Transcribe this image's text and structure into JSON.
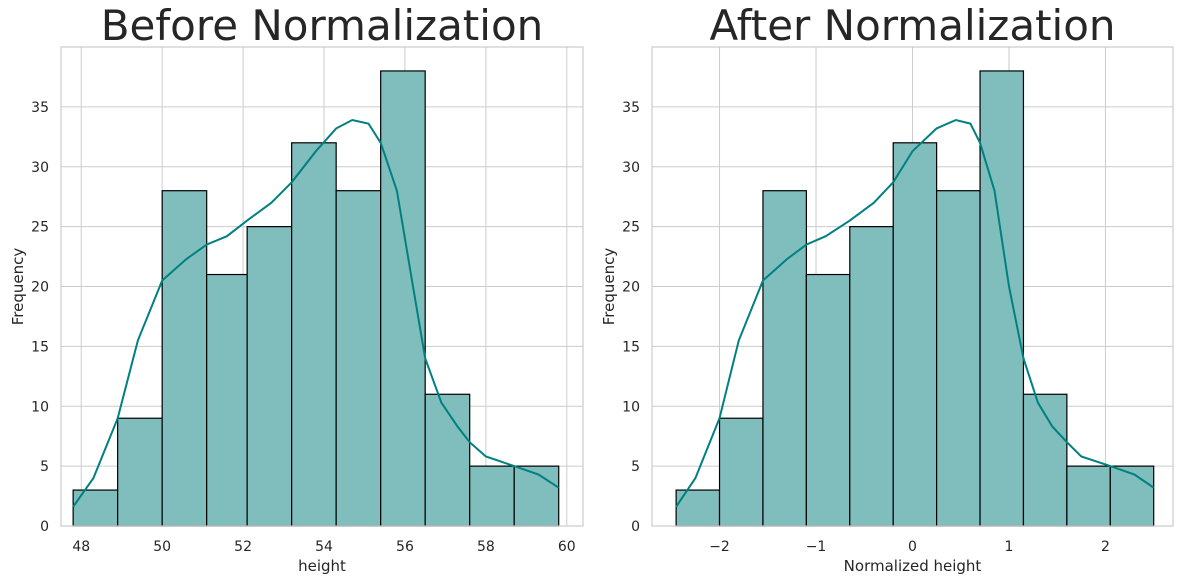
{
  "chart_data": [
    {
      "type": "bar",
      "subtype": "histogram",
      "title": "Before Normalization",
      "xlabel": "height",
      "ylabel": "Frequency",
      "xlim": [
        47.5,
        60.4
      ],
      "ylim": [
        0,
        40
      ],
      "xticks": [
        48,
        50,
        52,
        54,
        56,
        58,
        60
      ],
      "yticks": [
        0,
        5,
        10,
        15,
        20,
        25,
        30,
        35
      ],
      "bins": [
        {
          "from": 47.8,
          "to": 48.9,
          "count": 3
        },
        {
          "from": 48.9,
          "to": 50.0,
          "count": 9
        },
        {
          "from": 50.0,
          "to": 51.1,
          "count": 28
        },
        {
          "from": 51.1,
          "to": 52.1,
          "count": 21
        },
        {
          "from": 52.1,
          "to": 53.2,
          "count": 25
        },
        {
          "from": 53.2,
          "to": 54.3,
          "count": 32
        },
        {
          "from": 54.3,
          "to": 55.4,
          "count": 28
        },
        {
          "from": 55.4,
          "to": 56.5,
          "count": 38
        },
        {
          "from": 56.5,
          "to": 57.6,
          "count": 11
        },
        {
          "from": 57.6,
          "to": 58.7,
          "count": 5
        },
        {
          "from": 58.7,
          "to": 59.8,
          "count": 5
        }
      ],
      "kde": {
        "x": [
          47.8,
          48.3,
          48.9,
          49.4,
          50.0,
          50.6,
          51.1,
          51.6,
          52.1,
          52.7,
          53.2,
          53.8,
          54.3,
          54.7,
          55.1,
          55.4,
          55.8,
          56.2,
          56.5,
          56.9,
          57.3,
          57.6,
          58.0,
          58.7,
          59.3,
          59.8
        ],
        "y": [
          1.6,
          4.0,
          9.0,
          15.5,
          20.5,
          22.3,
          23.5,
          24.2,
          25.5,
          27.0,
          28.7,
          31.3,
          33.2,
          33.9,
          33.6,
          32.0,
          28.0,
          20.0,
          14.0,
          10.3,
          8.3,
          7.0,
          5.8,
          5.0,
          4.3,
          3.2
        ]
      },
      "grid": true,
      "colors": {
        "bar_fill": "#80bdbd",
        "bar_edge": "#000000",
        "kde_line": "#008080",
        "grid": "#cccccc"
      }
    },
    {
      "type": "bar",
      "subtype": "histogram",
      "title": "After Normalization",
      "xlabel": "Normalized height",
      "ylabel": "Frequency",
      "xlim": [
        -2.7,
        2.7
      ],
      "ylim": [
        0,
        40
      ],
      "xticks": [
        -2,
        -1,
        0,
        1,
        2
      ],
      "xtick_labels": [
        "−2",
        "−1",
        "0",
        "1",
        "2"
      ],
      "yticks": [
        0,
        5,
        10,
        15,
        20,
        25,
        30,
        35
      ],
      "bins": [
        {
          "from": -2.45,
          "to": -2.0,
          "count": 3
        },
        {
          "from": -2.0,
          "to": -1.55,
          "count": 9
        },
        {
          "from": -1.55,
          "to": -1.1,
          "count": 28
        },
        {
          "from": -1.1,
          "to": -0.65,
          "count": 21
        },
        {
          "from": -0.65,
          "to": -0.2,
          "count": 25
        },
        {
          "from": -0.2,
          "to": 0.25,
          "count": 32
        },
        {
          "from": 0.25,
          "to": 0.7,
          "count": 28
        },
        {
          "from": 0.7,
          "to": 1.15,
          "count": 38
        },
        {
          "from": 1.15,
          "to": 1.6,
          "count": 11
        },
        {
          "from": 1.6,
          "to": 2.05,
          "count": 5
        },
        {
          "from": 2.05,
          "to": 2.5,
          "count": 5
        }
      ],
      "kde": {
        "x": [
          -2.45,
          -2.25,
          -2.0,
          -1.8,
          -1.55,
          -1.3,
          -1.1,
          -0.9,
          -0.65,
          -0.4,
          -0.2,
          0.0,
          0.25,
          0.45,
          0.6,
          0.7,
          0.85,
          1.0,
          1.15,
          1.3,
          1.45,
          1.6,
          1.75,
          2.05,
          2.3,
          2.5
        ],
        "y": [
          1.6,
          4.0,
          9.0,
          15.5,
          20.5,
          22.3,
          23.5,
          24.2,
          25.5,
          27.0,
          28.7,
          31.3,
          33.2,
          33.9,
          33.6,
          32.0,
          28.0,
          20.0,
          14.0,
          10.3,
          8.3,
          7.0,
          5.8,
          5.0,
          4.3,
          3.2
        ]
      },
      "grid": true,
      "colors": {
        "bar_fill": "#80bdbd",
        "bar_edge": "#000000",
        "kde_line": "#008080",
        "grid": "#cccccc"
      }
    }
  ]
}
